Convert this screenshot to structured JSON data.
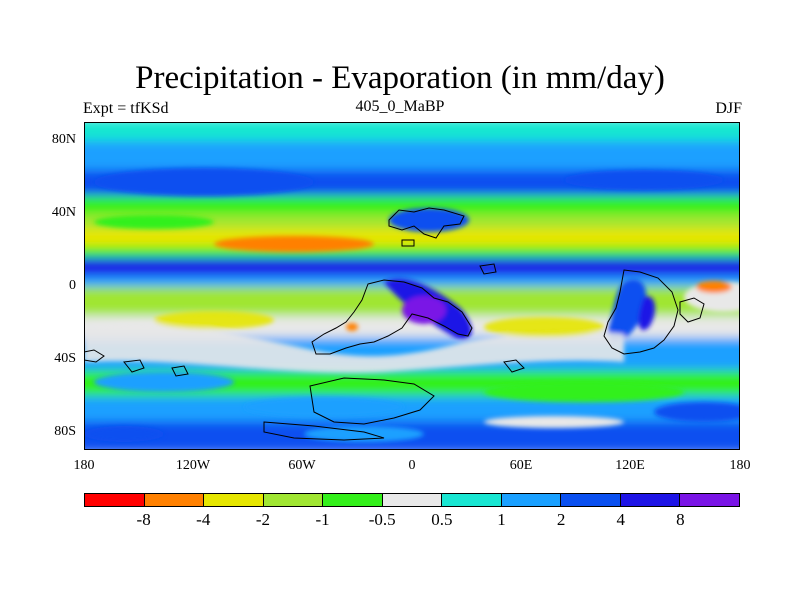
{
  "figure": {
    "title": "Precipitation - Evaporation (in mm/day)",
    "left_label": "Expt = tfKSd",
    "center_label": "405_0_MaBP",
    "right_label": "DJF"
  },
  "axes": {
    "x_ticks": [
      "180",
      "120W",
      "60W",
      "0",
      "60E",
      "120E",
      "180"
    ],
    "y_ticks": [
      "80N",
      "40N",
      "0",
      "40S",
      "80S"
    ]
  },
  "colorbar": {
    "colors": [
      "#ff0000",
      "#ff8000",
      "#e6e600",
      "#a0e632",
      "#33f01a",
      "#e8e8e8",
      "#19e6d2",
      "#1aa0ff",
      "#0a50f0",
      "#1e14e6",
      "#7a14e6"
    ],
    "labels": [
      "-8",
      "-4",
      "-2",
      "-1",
      "-0.5",
      "0.5",
      "1",
      "2",
      "4",
      "8"
    ]
  },
  "chart_data": {
    "type": "heatmap",
    "title": "Precipitation - Evaporation (in mm/day)",
    "units": "mm/day",
    "x_range": [
      -180,
      180
    ],
    "y_range": [
      -90,
      90
    ],
    "color_levels": [
      -8,
      -4,
      -2,
      -1,
      -0.5,
      0.5,
      1,
      2,
      4,
      8
    ],
    "zonal_bands": [
      {
        "lat_from": 90,
        "lat_to": 78,
        "category": "0.5 to 1"
      },
      {
        "lat_from": 78,
        "lat_to": 62,
        "category": "1 to 2"
      },
      {
        "lat_from": 62,
        "lat_to": 48,
        "category": "2 to 4"
      },
      {
        "lat_from": 48,
        "lat_to": 38,
        "category": "-1 to -0.5"
      },
      {
        "lat_from": 38,
        "lat_to": 30,
        "category": "-2 to -1"
      },
      {
        "lat_from": 30,
        "lat_to": 20,
        "category": "-4 to -2"
      },
      {
        "lat_from": 20,
        "lat_to": 14,
        "category": "-1 to -0.5"
      },
      {
        "lat_from": 14,
        "lat_to": 4,
        "category": "4 to 8"
      },
      {
        "lat_from": 4,
        "lat_to": -2,
        "category": "1 to 2"
      },
      {
        "lat_from": -2,
        "lat_to": -18,
        "category": "-2 to -1"
      },
      {
        "lat_from": -18,
        "lat_to": -30,
        "category": "-0.5 to 0.5"
      },
      {
        "lat_from": -30,
        "lat_to": -48,
        "category": "1 to 2"
      },
      {
        "lat_from": -48,
        "lat_to": -62,
        "category": "-1 to -0.5"
      },
      {
        "lat_from": -62,
        "lat_to": -76,
        "category": "1 to 2"
      },
      {
        "lat_from": -76,
        "lat_to": -90,
        "category": "2 to 4"
      }
    ]
  }
}
